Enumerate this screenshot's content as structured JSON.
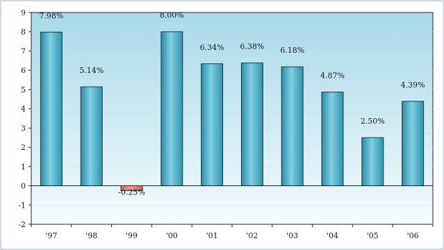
{
  "chart_data": {
    "type": "bar",
    "title": "",
    "xlabel": "",
    "ylabel": "",
    "categories": [
      "'97",
      "'98",
      "'99",
      "'00",
      "'01",
      "'02",
      "'03",
      "'04",
      "'05",
      "'06"
    ],
    "values": [
      7.98,
      5.14,
      -0.25,
      8.0,
      6.34,
      6.38,
      6.18,
      4.87,
      2.5,
      4.39
    ],
    "data_labels": [
      "7.98%",
      "5.14%",
      "-0.25%",
      "8.00%",
      "6.34%",
      "6.38%",
      "6.18%",
      "4.87%",
      "2.50%",
      "4.39%"
    ],
    "y_ticks": [
      "-2",
      "-1",
      "0",
      "1",
      "2",
      "3",
      "4",
      "5",
      "6",
      "7",
      "8",
      "9"
    ],
    "ylim": [
      -2,
      9
    ],
    "grid": true,
    "legend": "none",
    "colors": {
      "positive_bar": "#3fa7bf",
      "negative_bar": "#e8836a",
      "plot_top": "#a9d9e9",
      "plot_bottom": "#f3fbfd",
      "grid": "#c6e1ea"
    }
  }
}
